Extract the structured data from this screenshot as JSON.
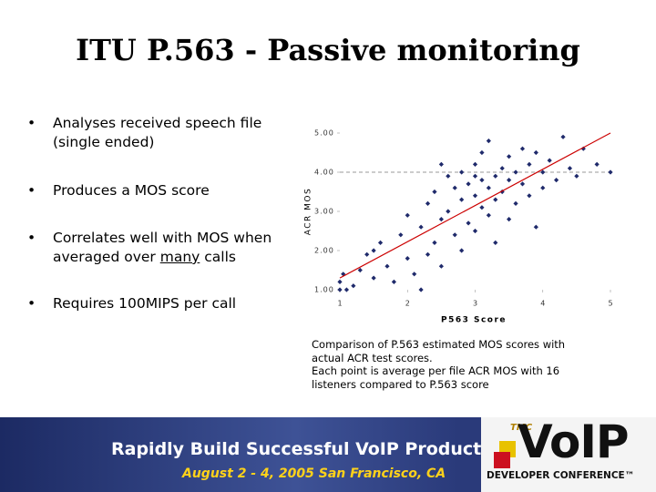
{
  "title": "ITU P.563 - Passive monitoring",
  "bullets": [
    [
      "Analyses received speech file (single ended)"
    ],
    [
      "Produces a MOS score"
    ],
    [
      "Correlates well with MOS when averaged over ",
      "many",
      " calls"
    ],
    [
      "Requires 100MIPS per call"
    ]
  ],
  "chart_data": {
    "type": "scatter",
    "xlabel": "P563 Score",
    "ylabel": "ACR MOS",
    "color": "#1f2a6b",
    "x": [
      1.0,
      1.0,
      1.05,
      1.1,
      1.2,
      1.3,
      1.4,
      1.5,
      1.6,
      1.7,
      1.8,
      1.9,
      2.0,
      2.0,
      2.1,
      2.2,
      2.3,
      2.3,
      2.4,
      2.4,
      2.5,
      2.5,
      2.6,
      2.6,
      2.7,
      2.7,
      2.8,
      2.8,
      2.8,
      2.9,
      2.9,
      3.0,
      3.0,
      3.0,
      3.0,
      3.1,
      3.1,
      3.1,
      3.2,
      3.2,
      3.2,
      3.3,
      3.3,
      3.3,
      3.4,
      3.4,
      3.5,
      3.5,
      3.5,
      3.6,
      3.6,
      3.7,
      3.7,
      3.8,
      3.8,
      3.9,
      4.0,
      4.0,
      4.1,
      4.2,
      4.3,
      4.4,
      4.5,
      4.6,
      4.8,
      5.0,
      2.2,
      1.5,
      3.9,
      2.5
    ],
    "y": [
      1.0,
      1.2,
      1.4,
      1.0,
      1.1,
      1.5,
      1.9,
      1.3,
      2.2,
      1.6,
      1.2,
      2.4,
      1.8,
      2.9,
      1.4,
      2.6,
      3.2,
      1.9,
      2.2,
      3.5,
      2.8,
      1.6,
      3.0,
      3.9,
      2.4,
      3.6,
      3.3,
      2.0,
      4.0,
      3.7,
      2.7,
      3.9,
      3.4,
      2.5,
      4.2,
      3.8,
      3.1,
      4.5,
      3.6,
      2.9,
      4.8,
      3.9,
      3.3,
      2.2,
      4.1,
      3.5,
      3.8,
      4.4,
      2.8,
      3.2,
      4.0,
      4.6,
      3.7,
      3.4,
      4.2,
      4.5,
      3.6,
      4.0,
      4.3,
      3.8,
      4.9,
      4.1,
      3.9,
      4.6,
      4.2,
      4.0,
      1.0,
      2.0,
      2.6,
      4.2
    ],
    "fit_line": {
      "x": [
        1,
        5
      ],
      "y": [
        1.3,
        5.0
      ],
      "color": "#cc0000"
    },
    "reference_line": 4,
    "xlim": [
      1,
      5
    ],
    "ylim": [
      1,
      5
    ],
    "xticks": [
      1,
      2,
      3,
      4,
      5
    ],
    "yticks": [
      {
        "value": 1,
        "label": "1.00"
      },
      {
        "value": 2,
        "label": "2.00"
      },
      {
        "value": 3,
        "label": "3.00"
      },
      {
        "value": 4,
        "label": "4.00"
      },
      {
        "value": 5,
        "label": "5.00"
      }
    ]
  },
  "caption": [
    "Comparison of P.563 estimated MOS scores with actual ACR test scores.",
    "Each point is average per file ACR MOS with 16 listeners compared to P.563 score"
  ],
  "banner": {
    "headline": "Rapidly Build Successful VoIP Products",
    "dates": "August 2 - 4, 2005 San Francisco, CA",
    "brand": "TMC",
    "logo": "VoIP",
    "logo_sub": "DEVELOPER CONFERENCE™"
  }
}
